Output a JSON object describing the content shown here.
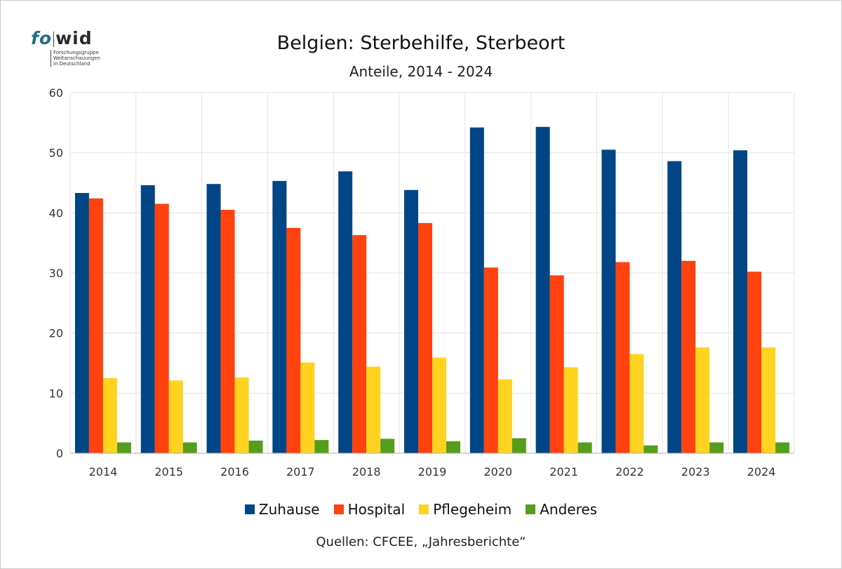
{
  "logo": {
    "mark_left": "fo",
    "mark_right": "wid",
    "sub_lines": [
      "Forschungsgruppe",
      "Weltanschauungen",
      "in Deutschland"
    ]
  },
  "chart_data": {
    "type": "bar",
    "title": "Belgien: Sterbehilfe, Sterbeort",
    "subtitle": "Anteile, 2014 - 2024",
    "source": "Quellen: CFCEE, „Jahresberichte“",
    "categories": [
      "2014",
      "2015",
      "2016",
      "2017",
      "2018",
      "2019",
      "2020",
      "2021",
      "2022",
      "2023",
      "2024"
    ],
    "ylim": [
      0,
      60
    ],
    "yticks": [
      0,
      10,
      20,
      30,
      40,
      50,
      60
    ],
    "grid": true,
    "legend_position": "bottom",
    "series": [
      {
        "name": "Zuhause",
        "color": "#004586",
        "values": [
          43.3,
          44.6,
          44.8,
          45.3,
          46.9,
          43.8,
          54.2,
          54.3,
          50.5,
          48.6,
          50.4
        ]
      },
      {
        "name": "Hospital",
        "color": "#ff420e",
        "values": [
          42.4,
          41.5,
          40.5,
          37.5,
          36.3,
          38.3,
          30.9,
          29.6,
          31.8,
          32.0,
          30.2
        ]
      },
      {
        "name": "Pflegeheim",
        "color": "#ffd320",
        "values": [
          12.5,
          12.1,
          12.6,
          15.1,
          14.4,
          15.9,
          12.3,
          14.3,
          16.5,
          17.6,
          17.6
        ]
      },
      {
        "name": "Anderes",
        "color": "#579d1c",
        "values": [
          1.8,
          1.8,
          2.1,
          2.2,
          2.4,
          2.0,
          2.5,
          1.8,
          1.3,
          1.8,
          1.8
        ]
      }
    ]
  }
}
